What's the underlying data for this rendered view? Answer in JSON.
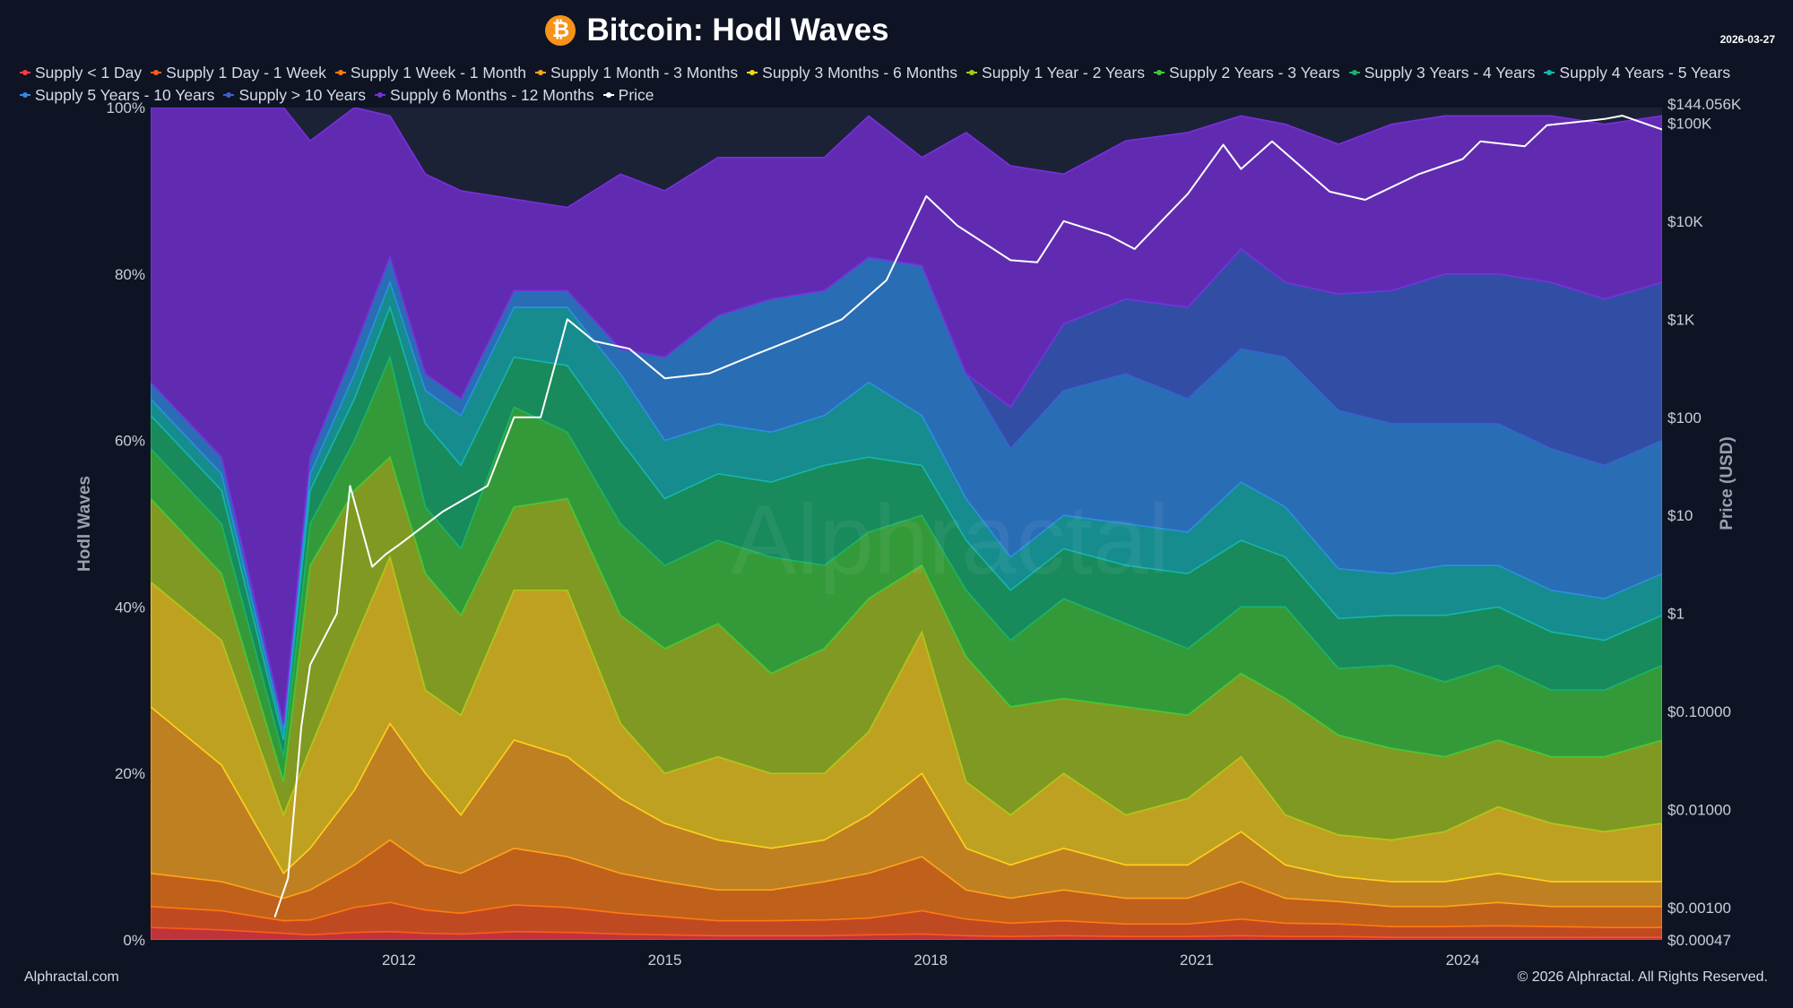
{
  "page": {
    "title": "Bitcoin: Hodl Waves",
    "title_icon": "bitcoin-icon",
    "icon_glyph": "₿",
    "date": "2026-03-27",
    "footer_left": "Alphractal.com",
    "footer_right": "© 2026 Alphractal. All Rights Reserved.",
    "watermark": "Alphractal"
  },
  "chart_data": {
    "type": "area",
    "stacked": true,
    "title": "Bitcoin: Hodl Waves",
    "ylabel": "Hodl Waves",
    "y2label": "Price (USD)",
    "ylim": [
      0,
      100
    ],
    "y2_scale": "log",
    "y2lim": [
      0.00047,
      144056
    ],
    "yticks": [
      "0%",
      "20%",
      "40%",
      "60%",
      "80%",
      "100%"
    ],
    "ytick_values": [
      0,
      20,
      40,
      60,
      80,
      100
    ],
    "y2ticks": [
      "$0.00047",
      "$0.00100",
      "$0.01000",
      "$0.10000",
      "$1",
      "$10",
      "$100",
      "$1K",
      "$10K",
      "$100K",
      "$144.056K"
    ],
    "y2tick_values": [
      0.00047,
      0.001,
      0.01,
      0.1,
      1,
      10,
      100,
      1000,
      10000,
      100000,
      144056
    ],
    "xticks": [
      "2012",
      "2015",
      "2018",
      "2021",
      "2024"
    ],
    "xtick_values": [
      2012,
      2015,
      2018,
      2021,
      2024
    ],
    "xlim": [
      2009.2,
      2026.25
    ],
    "legend_position": "top",
    "x": [
      2009.2,
      2010.0,
      2010.7,
      2011.0,
      2011.5,
      2011.9,
      2012.3,
      2012.7,
      2013.3,
      2013.9,
      2014.5,
      2015.0,
      2015.6,
      2016.2,
      2016.8,
      2017.3,
      2017.9,
      2018.4,
      2018.9,
      2019.5,
      2020.2,
      2020.9,
      2021.5,
      2022.0,
      2022.6,
      2023.2,
      2023.8,
      2024.4,
      2025.0,
      2025.6,
      2026.25
    ],
    "series": [
      {
        "name": "Supply < 1 Day",
        "color": "#ff3b3b",
        "values": [
          1.5,
          1.2,
          0.8,
          0.6,
          0.9,
          1.0,
          0.8,
          0.7,
          1.0,
          0.9,
          0.7,
          0.6,
          0.5,
          0.5,
          0.5,
          0.6,
          0.7,
          0.5,
          0.4,
          0.5,
          0.4,
          0.4,
          0.5,
          0.4,
          0.4,
          0.3,
          0.3,
          0.3,
          0.3,
          0.3,
          0.3
        ]
      },
      {
        "name": "Supply 1 Day - 1 Week",
        "color": "#ff5a1a",
        "values": [
          2.5,
          2.3,
          1.5,
          1.8,
          3.0,
          3.5,
          2.8,
          2.5,
          3.2,
          3.0,
          2.5,
          2.2,
          1.8,
          1.8,
          1.9,
          2.0,
          2.8,
          2.0,
          1.6,
          1.8,
          1.5,
          1.5,
          2.0,
          1.6,
          1.5,
          1.3,
          1.3,
          1.4,
          1.3,
          1.2,
          1.2
        ]
      },
      {
        "name": "Supply 1 Week - 1 Month",
        "color": "#ff7a10",
        "values": [
          4.0,
          3.5,
          2.7,
          3.6,
          5.1,
          7.5,
          5.4,
          4.8,
          6.8,
          6.1,
          4.8,
          4.2,
          3.7,
          3.7,
          4.6,
          5.4,
          6.5,
          3.5,
          3.0,
          3.7,
          3.1,
          3.1,
          4.5,
          3.0,
          2.7,
          2.4,
          2.4,
          2.8,
          2.4,
          2.5,
          2.5
        ]
      },
      {
        "name": "Supply 1 Month - 3 Months",
        "color": "#ffa51a",
        "values": [
          20.0,
          14.0,
          3.0,
          5.0,
          9.0,
          14.0,
          11.0,
          7.0,
          13.0,
          12.0,
          9.0,
          7.0,
          6.0,
          5.0,
          5.0,
          7.0,
          10.0,
          5.0,
          4.0,
          5.0,
          4.0,
          4.0,
          6.0,
          4.0,
          3.0,
          3.0,
          3.0,
          3.5,
          3.0,
          3.0,
          3.0
        ]
      },
      {
        "name": "Supply 3 Months - 6 Months",
        "color": "#ffd21a",
        "values": [
          15.0,
          15.0,
          7.0,
          12.0,
          18.0,
          20.0,
          10.0,
          12.0,
          18.0,
          20.0,
          9.0,
          6.0,
          10.0,
          9.0,
          8.0,
          10.0,
          17.0,
          8.0,
          6.0,
          9.0,
          6.0,
          8.0,
          9.0,
          6.0,
          5.0,
          5.0,
          6.0,
          8.0,
          7.0,
          6.0,
          7.0
        ]
      },
      {
        "name": "Supply 1 Year - 2 Years",
        "color": "#a8c81a",
        "values": [
          10.0,
          8.0,
          4.0,
          22.0,
          18.0,
          12.0,
          14.0,
          12.0,
          10.0,
          11.0,
          13.0,
          15.0,
          16.0,
          12.0,
          15.0,
          16.0,
          8.0,
          15.0,
          13.0,
          9.0,
          13.0,
          10.0,
          10.0,
          14.0,
          12.0,
          11.0,
          9.0,
          8.0,
          8.0,
          9.0,
          10.0
        ]
      },
      {
        "name": "Supply 2 Years - 3 Years",
        "color": "#3fc93a",
        "values": [
          6.0,
          6.0,
          3.0,
          5.0,
          6.0,
          12.0,
          8.0,
          8.0,
          12.0,
          8.0,
          11.0,
          10.0,
          10.0,
          14.0,
          10.0,
          8.0,
          6.0,
          8.0,
          8.0,
          12.0,
          10.0,
          8.0,
          8.0,
          11.0,
          8.0,
          10.0,
          9.0,
          9.0,
          8.0,
          8.0,
          9.0
        ]
      },
      {
        "name": "Supply 3 Years - 4 Years",
        "color": "#17b36b",
        "values": [
          4.0,
          4.0,
          2.0,
          4.0,
          5.0,
          6.0,
          10.0,
          10.0,
          6.0,
          8.0,
          10.0,
          8.0,
          8.0,
          9.0,
          12.0,
          9.0,
          6.0,
          6.0,
          6.0,
          6.0,
          7.0,
          9.0,
          8.0,
          6.0,
          6.0,
          6.0,
          8.0,
          7.0,
          7.0,
          6.0,
          6.0
        ]
      },
      {
        "name": "Supply 4 Years - 5 Years",
        "color": "#15b5b0",
        "values": [
          2.0,
          2.0,
          1.0,
          2.0,
          3.0,
          3.0,
          4.0,
          6.0,
          6.0,
          7.0,
          8.0,
          7.0,
          6.0,
          6.0,
          6.0,
          9.0,
          6.0,
          5.0,
          4.0,
          4.0,
          5.0,
          5.0,
          7.0,
          6.0,
          6.0,
          5.0,
          6.0,
          5.0,
          5.0,
          5.0,
          5.0
        ]
      },
      {
        "name": "Supply 5 Years - 10 Years",
        "color": "#2f8be5",
        "values": [
          2.0,
          2.0,
          1.0,
          2.0,
          3.0,
          3.0,
          2.0,
          2.0,
          2.0,
          2.0,
          3.0,
          10.0,
          13.0,
          16.0,
          15.0,
          15.0,
          18.0,
          15.0,
          13.0,
          15.0,
          18.0,
          16.0,
          16.0,
          18.0,
          19.0,
          18.0,
          17.0,
          17.0,
          17.0,
          16.0,
          16.0
        ]
      },
      {
        "name": "Supply > 10 Years",
        "color": "#3a5fcf",
        "values": [
          0,
          0,
          0,
          0,
          0,
          0,
          0,
          0,
          0,
          0,
          0,
          0,
          0,
          0,
          0,
          0,
          0,
          0,
          5.0,
          8.0,
          9.0,
          11.0,
          12.0,
          9.0,
          14.0,
          16.0,
          18.0,
          18.0,
          20.0,
          20.0,
          19.0
        ]
      },
      {
        "name": "Supply 6 Months - 12 Months",
        "color": "#7b2fe0",
        "values": [
          33.0,
          42.0,
          74.0,
          38.0,
          29.0,
          17.0,
          24.0,
          25.0,
          11.0,
          10.0,
          21.0,
          20.0,
          19.0,
          17.0,
          16.0,
          17.0,
          13.0,
          29.0,
          29.0,
          18.0,
          19.0,
          21.0,
          16.0,
          19.0,
          18.0,
          20.0,
          19.0,
          19.0,
          20.0,
          21.0,
          20.0
        ]
      }
    ],
    "price": {
      "name": "Price",
      "color": "#ffffff",
      "x": [
        2010.6,
        2010.75,
        2010.9,
        2011.0,
        2011.3,
        2011.45,
        2011.7,
        2011.85,
        2012.0,
        2012.5,
        2013.0,
        2013.3,
        2013.6,
        2013.9,
        2014.2,
        2014.6,
        2015.0,
        2015.5,
        2016.0,
        2016.5,
        2017.0,
        2017.5,
        2017.95,
        2018.3,
        2018.9,
        2019.2,
        2019.5,
        2020.0,
        2020.3,
        2020.9,
        2021.3,
        2021.5,
        2021.85,
        2022.5,
        2022.9,
        2023.5,
        2024.0,
        2024.2,
        2024.7,
        2024.95,
        2025.6,
        2025.8,
        2026.25
      ],
      "values": [
        0.0008,
        0.002,
        0.07,
        0.3,
        1.0,
        20.0,
        3.0,
        4.0,
        5.0,
        11.0,
        20.0,
        100.0,
        100.0,
        1000.0,
        600.0,
        500.0,
        250.0,
        280.0,
        430.0,
        650.0,
        1000.0,
        2500.0,
        18000.0,
        9000.0,
        4000.0,
        3800.0,
        10000.0,
        7200.0,
        5200.0,
        19000.0,
        60000.0,
        34000.0,
        65000.0,
        20000.0,
        16500.0,
        30000.0,
        43000.0,
        65000.0,
        58000.0,
        95000.0,
        110000.0,
        119000.0,
        86000.0
      ]
    }
  }
}
